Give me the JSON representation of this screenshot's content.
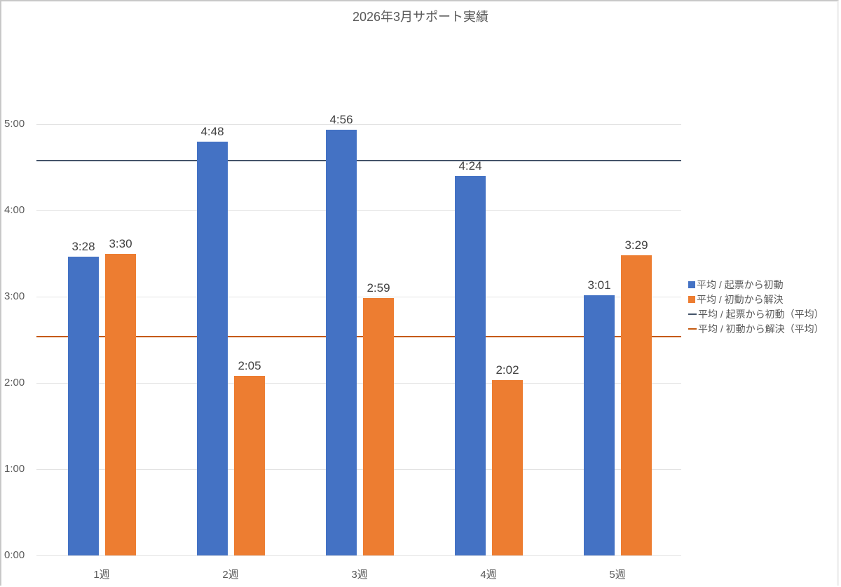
{
  "chart_data": {
    "type": "bar",
    "title": "2026年3月サポート実績",
    "xlabel": "",
    "ylabel": "",
    "categories": [
      "1週",
      "2週",
      "3週",
      "4週",
      "5週"
    ],
    "y_ticks": [
      "0:00",
      "1:00",
      "2:00",
      "3:00",
      "4:00",
      "5:00"
    ],
    "ylim": [
      "0:00",
      "5:00"
    ],
    "grid": true,
    "legend_position": "right",
    "series": [
      {
        "name": "平均 / 起票から初動",
        "kind": "bar",
        "color": "#4472c4",
        "labels": [
          "3:28",
          "4:48",
          "4:56",
          "4:24",
          "3:01"
        ],
        "values_minutes": [
          3.467,
          4.8,
          4.933,
          4.4,
          3.017
        ]
      },
      {
        "name": "平均 / 初動から解決",
        "kind": "bar",
        "color": "#ed7d31",
        "labels": [
          "3:30",
          "2:05",
          "2:59",
          "2:02",
          "3:29"
        ],
        "values_minutes": [
          3.5,
          2.083,
          2.983,
          2.033,
          3.483
        ]
      },
      {
        "name": "平均 / 起票から初動（平均）",
        "kind": "line",
        "color": "#44546a",
        "value_approx": "4:35",
        "value_minutes": 4.58
      },
      {
        "name": "平均 / 初動から解決（平均）",
        "kind": "line",
        "color": "#c55a11",
        "value_approx": "2:32",
        "value_minutes": 2.54
      }
    ]
  },
  "legend": {
    "items": [
      {
        "label": "平均 / 起票から初動",
        "type": "box",
        "color": "#4472c4"
      },
      {
        "label": "平均 / 初動から解決",
        "type": "box",
        "color": "#ed7d31"
      },
      {
        "label": "平均 / 起票から初動（平均）",
        "type": "line",
        "color": "#44546a"
      },
      {
        "label": "平均 / 初動から解決（平均）",
        "type": "line",
        "color": "#c55a11"
      }
    ]
  }
}
